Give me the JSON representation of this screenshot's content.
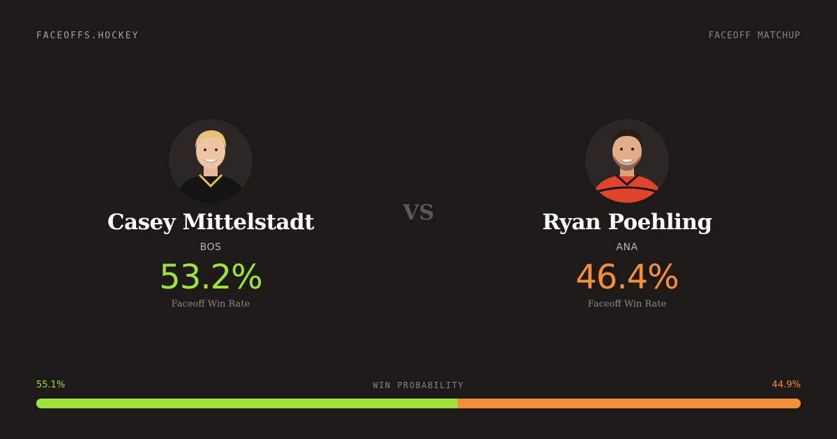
{
  "site": {
    "brand": "FACEOFFS.HOCKEY",
    "page_label": "FACEOFF MATCHUP"
  },
  "players": [
    {
      "name": "Casey Mittelstadt",
      "team": "BOS",
      "win_rate": "53.2%",
      "win_rate_label": "Faceoff Win Rate",
      "accent": "#9ee23a",
      "jersey_color": "#141414"
    },
    {
      "name": "Ryan Poehling",
      "team": "ANA",
      "win_rate": "46.4%",
      "win_rate_label": "Faceoff Win Rate",
      "accent": "#f68f3a",
      "jersey_color": "#e0452b"
    }
  ],
  "versus": "VS",
  "win_probability": {
    "title": "WIN PROBABILITY",
    "left_label": "55.1%",
    "right_label": "44.9%",
    "left_value": 55.1,
    "right_value": 44.9,
    "left_color": "#9ee23a",
    "right_color": "#f68f3a"
  }
}
